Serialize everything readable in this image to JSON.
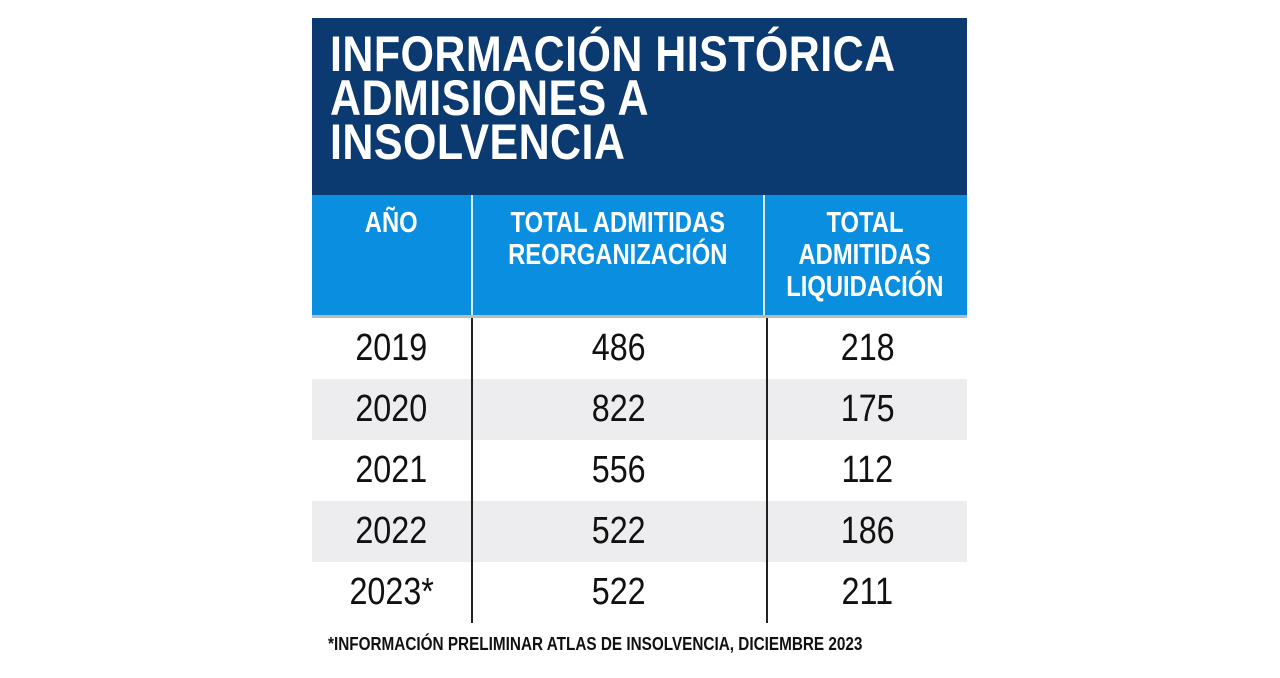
{
  "title_lines": [
    "INFORMACIÓN HISTÓRICA",
    "ADMISIONES A",
    "INSOLVENCIA"
  ],
  "colors": {
    "title_bg": "#0b3a70",
    "header_bg": "#0a8fe0",
    "alt_row": "#ededef"
  },
  "chart_data": {
    "type": "table",
    "title": "INFORMACIÓN HISTÓRICA ADMISIONES A INSOLVENCIA",
    "columns": [
      "AÑO",
      "TOTAL ADMITIDAS REORGANIZACIÓN",
      "TOTAL ADMITIDAS LIQUIDACIÓN"
    ],
    "header_lines": [
      [
        "AÑO"
      ],
      [
        "TOTAL ADMITIDAS",
        "REORGANIZACIÓN"
      ],
      [
        "TOTAL",
        "ADMITIDAS",
        "LIQUIDACIÓN"
      ]
    ],
    "rows": [
      [
        "2019",
        "486",
        "218"
      ],
      [
        "2020",
        "822",
        "175"
      ],
      [
        "2021",
        "556",
        "112"
      ],
      [
        "2022",
        "522",
        "186"
      ],
      [
        "2023*",
        "522",
        "211"
      ]
    ],
    "footnote": "*INFORMACIÓN PRELIMINAR ATLAS DE INSOLVENCIA, DICIEMBRE 2023"
  }
}
